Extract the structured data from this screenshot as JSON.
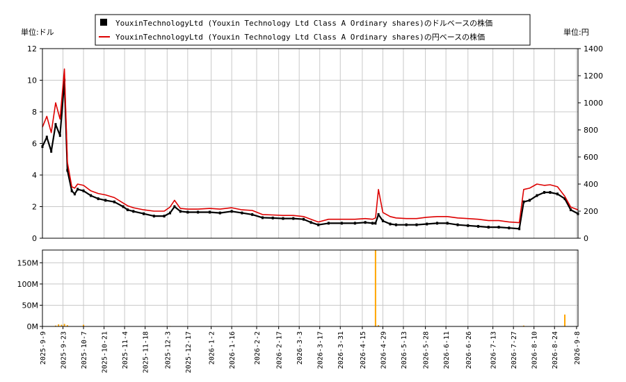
{
  "chart_data": [
    {
      "type": "line",
      "title": "",
      "legend": {
        "placement": "top-center",
        "entries": [
          {
            "label": "YouxinTechnologyLtd (Youxin Technology Ltd Class A Ordinary shares)のドルベースの株価",
            "color": "#000000",
            "marker": "square"
          },
          {
            "label": "YouxinTechnologyLtd (Youxin Technology Ltd Class A Ordinary shares)の円ベースの株価",
            "color": "#dd0000",
            "marker": "line"
          }
        ]
      },
      "y_left_label": "単位:ドル",
      "y_right_label": "単位:円",
      "y_left_range": [
        0,
        12
      ],
      "y_right_range": [
        0,
        1400
      ],
      "y_left_ticks": [
        "0",
        "2",
        "4",
        "6",
        "8",
        "10",
        "12"
      ],
      "y_right_ticks": [
        "0",
        "200",
        "400",
        "600",
        "800",
        "1000",
        "1200",
        "1400"
      ],
      "grid": true,
      "series": [
        {
          "name": "ドルベース",
          "color": "#000000",
          "x": [
            "2025-09-09",
            "2025-09-12",
            "2025-09-15",
            "2025-09-18",
            "2025-09-21",
            "2025-09-24",
            "2025-09-26",
            "2025-09-29",
            "2025-10-01",
            "2025-10-03",
            "2025-10-07",
            "2025-10-12",
            "2025-10-17",
            "2025-10-22",
            "2025-10-28",
            "2025-11-03",
            "2025-11-06",
            "2025-11-10",
            "2025-11-17",
            "2025-11-24",
            "2025-12-01",
            "2025-12-05",
            "2025-12-08",
            "2025-12-12",
            "2025-12-17",
            "2025-12-24",
            "2026-01-01",
            "2026-01-08",
            "2026-01-16",
            "2026-01-23",
            "2026-01-30",
            "2026-02-06",
            "2026-02-13",
            "2026-02-20",
            "2026-02-27",
            "2026-03-06",
            "2026-03-11",
            "2026-03-16",
            "2026-03-23",
            "2026-04-01",
            "2026-04-10",
            "2026-04-17",
            "2026-04-22",
            "2026-04-24",
            "2026-04-26",
            "2026-04-29",
            "2026-05-04",
            "2026-05-08",
            "2026-05-15",
            "2026-05-22",
            "2026-05-29",
            "2026-06-05",
            "2026-06-12",
            "2026-06-19",
            "2026-06-26",
            "2026-07-03",
            "2026-07-10",
            "2026-07-17",
            "2026-07-24",
            "2026-07-31",
            "2026-08-03",
            "2026-08-07",
            "2026-08-12",
            "2026-08-17",
            "2026-08-21",
            "2026-08-26",
            "2026-08-31",
            "2026-09-04",
            "2026-09-09"
          ],
          "values": [
            5.8,
            6.4,
            5.5,
            7.2,
            6.5,
            10.0,
            4.3,
            3.0,
            2.8,
            3.1,
            3.0,
            2.7,
            2.5,
            2.4,
            2.3,
            2.0,
            1.8,
            1.7,
            1.55,
            1.4,
            1.4,
            1.6,
            2.0,
            1.7,
            1.65,
            1.65,
            1.65,
            1.6,
            1.7,
            1.6,
            1.5,
            1.3,
            1.28,
            1.25,
            1.25,
            1.2,
            1.0,
            0.85,
            0.95,
            0.95,
            0.95,
            1.0,
            0.95,
            0.95,
            1.5,
            1.1,
            0.9,
            0.85,
            0.85,
            0.85,
            0.9,
            0.95,
            0.95,
            0.85,
            0.8,
            0.75,
            0.7,
            0.7,
            0.65,
            0.6,
            2.3,
            2.4,
            2.7,
            2.9,
            2.9,
            2.8,
            2.5,
            1.8,
            1.55
          ]
        },
        {
          "name": "円ベース",
          "color": "#dd0000",
          "x": [
            "2025-09-09",
            "2025-09-12",
            "2025-09-15",
            "2025-09-18",
            "2025-09-21",
            "2025-09-24",
            "2025-09-26",
            "2025-09-29",
            "2025-10-01",
            "2025-10-03",
            "2025-10-07",
            "2025-10-12",
            "2025-10-17",
            "2025-10-22",
            "2025-10-28",
            "2025-11-03",
            "2025-11-06",
            "2025-11-10",
            "2025-11-17",
            "2025-11-24",
            "2025-12-01",
            "2025-12-05",
            "2025-12-08",
            "2025-12-12",
            "2025-12-17",
            "2025-12-24",
            "2026-01-01",
            "2026-01-08",
            "2026-01-16",
            "2026-01-23",
            "2026-01-30",
            "2026-02-06",
            "2026-02-13",
            "2026-02-20",
            "2026-02-27",
            "2026-03-06",
            "2026-03-11",
            "2026-03-16",
            "2026-03-23",
            "2026-04-01",
            "2026-04-10",
            "2026-04-17",
            "2026-04-22",
            "2026-04-24",
            "2026-04-26",
            "2026-04-29",
            "2026-05-04",
            "2026-05-08",
            "2026-05-15",
            "2026-05-22",
            "2026-05-29",
            "2026-06-05",
            "2026-06-12",
            "2026-06-19",
            "2026-06-26",
            "2026-07-03",
            "2026-07-10",
            "2026-07-17",
            "2026-07-24",
            "2026-07-31",
            "2026-08-03",
            "2026-08-07",
            "2026-08-12",
            "2026-08-17",
            "2026-08-21",
            "2026-08-26",
            "2026-08-31",
            "2026-09-04",
            "2026-09-09"
          ],
          "values": [
            820,
            900,
            780,
            1000,
            880,
            1250,
            560,
            380,
            370,
            400,
            390,
            350,
            330,
            320,
            300,
            260,
            240,
            225,
            210,
            200,
            200,
            230,
            280,
            220,
            215,
            215,
            220,
            215,
            225,
            210,
            205,
            175,
            172,
            168,
            168,
            160,
            140,
            120,
            140,
            140,
            140,
            145,
            140,
            150,
            360,
            190,
            160,
            150,
            145,
            145,
            155,
            160,
            160,
            150,
            145,
            140,
            130,
            130,
            120,
            115,
            360,
            370,
            400,
            390,
            395,
            380,
            310,
            230,
            210
          ]
        }
      ]
    },
    {
      "type": "bar",
      "title": "",
      "ylabel": "",
      "y_range": [
        0,
        180000000
      ],
      "y_ticks": [
        "0M",
        "50M",
        "100M",
        "150M"
      ],
      "grid": true,
      "color": "#ffa500",
      "x_ticks": [
        "2025-9-9",
        "2025-9-23",
        "2025-10-7",
        "2025-10-21",
        "2025-11-4",
        "2025-11-18",
        "2025-12-3",
        "2025-12-17",
        "2026-1-2",
        "2026-1-16",
        "2026-2-2",
        "2026-2-17",
        "2026-3-3",
        "2026-3-17",
        "2026-3-31",
        "2026-4-15",
        "2026-4-29",
        "2026-5-13",
        "2026-5-28",
        "2026-6-11",
        "2026-6-26",
        "2026-7-13",
        "2026-7-27",
        "2026-8-10",
        "2026-8-24",
        "2026-9-8"
      ],
      "x": [
        "2025-09-18",
        "2025-09-20",
        "2025-09-22",
        "2025-09-24",
        "2025-09-26",
        "2025-10-07",
        "2025-12-05",
        "2026-04-24",
        "2026-04-26",
        "2026-08-03",
        "2026-08-31"
      ],
      "values": [
        2000000,
        5000000,
        4000000,
        6000000,
        3000000,
        4000000,
        1000000,
        180000000,
        3000000,
        2000000,
        28000000
      ]
    }
  ]
}
